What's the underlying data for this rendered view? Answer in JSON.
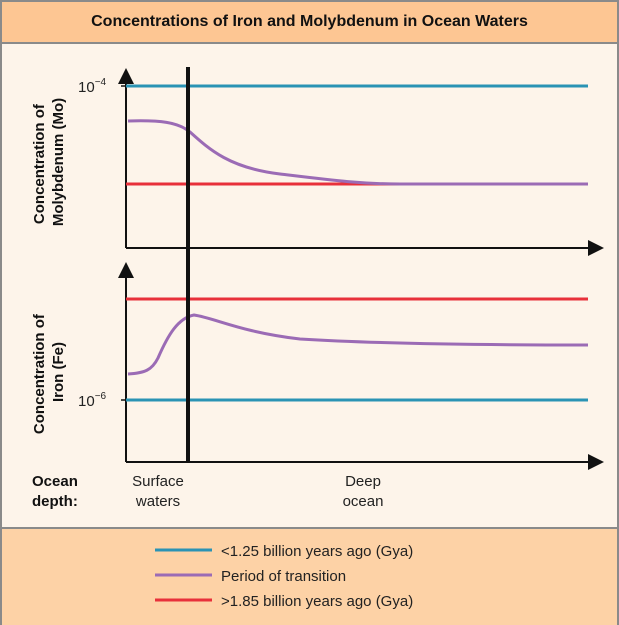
{
  "chart_data": {
    "type": "line",
    "title": "Concentrations of Iron and Molybdenum in Ocean Waters",
    "xlabel": "Ocean depth:",
    "x_categories": [
      "Surface waters",
      "Deep ocean"
    ],
    "panels": [
      {
        "ylabel_lines": [
          "Concentration of",
          "Molybdenum (Mo)"
        ],
        "ytick_base": "10",
        "ytick_exp": "−4"
      },
      {
        "ylabel_lines": [
          "Concentration of",
          "Iron (Fe)"
        ],
        "ytick_base": "10",
        "ytick_exp": "−6"
      }
    ],
    "series": [
      {
        "name": "<1.25 billion years ago (Gya)",
        "color": "#2a93b4"
      },
      {
        "name": "Period of transition",
        "color": "#9b6bb5"
      },
      {
        "name": ">1.85 billion years ago (Gya)",
        "color": "#e8303a"
      }
    ],
    "legend": "bottom",
    "grid": false
  }
}
